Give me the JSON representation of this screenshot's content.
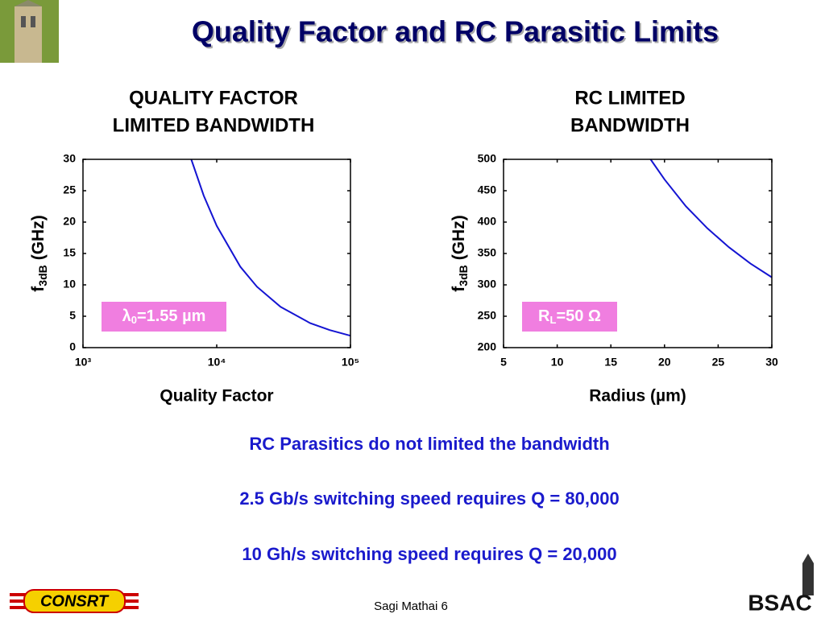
{
  "slide_title": "Quality Factor and RC Parasitic Limits",
  "chart_data": [
    {
      "type": "line",
      "title": [
        "QUALITY FACTOR",
        "LIMITED BANDWIDTH"
      ],
      "xlabel": "Quality Factor",
      "ylabel": {
        "symbol": "f",
        "subscript": "3dB",
        "unit": "(GHz)"
      },
      "annotation": {
        "symbol": "λ",
        "subscript": "0",
        "text": "=1.55 µm"
      },
      "xscale": "log",
      "x": [
        6450,
        8000,
        10000,
        15000,
        20000,
        30000,
        50000,
        70000,
        100000
      ],
      "series": [
        {
          "color": "#1414d2",
          "values": [
            30,
            24.2,
            19.4,
            12.9,
            9.7,
            6.5,
            3.9,
            2.8,
            1.9
          ]
        }
      ],
      "xlim": [
        1000,
        100000
      ],
      "xticks": [
        {
          "value": 1000,
          "label": "10³"
        },
        {
          "value": 10000,
          "label": "10⁴"
        },
        {
          "value": 100000,
          "label": "10⁵"
        }
      ],
      "ylim": [
        0,
        30
      ],
      "yticks": [
        0,
        5,
        10,
        15,
        20,
        25,
        30
      ]
    },
    {
      "type": "line",
      "title": [
        "RC LIMITED",
        "BANDWIDTH"
      ],
      "xlabel": "Radius (µm)",
      "ylabel": {
        "symbol": "f",
        "subscript": "3dB",
        "unit": "(GHz)"
      },
      "annotation": {
        "symbol": "R",
        "subscript": "L",
        "text": "=50 Ω"
      },
      "xscale": "linear",
      "x": [
        18.7,
        20,
        22,
        24,
        26,
        28,
        30
      ],
      "series": [
        {
          "color": "#1414d2",
          "values": [
            500,
            468,
            425,
            390,
            360,
            334,
            312
          ]
        }
      ],
      "xlim": [
        5,
        30
      ],
      "xticks": [
        5,
        10,
        15,
        20,
        25,
        30
      ],
      "ylim": [
        200,
        500
      ],
      "yticks": [
        200,
        250,
        300,
        350,
        400,
        450,
        500
      ]
    }
  ],
  "notes": [
    "RC Parasitics do not limited the bandwidth",
    "2.5 Gb/s switching speed requires Q = 80,000",
    "10 Gh/s switching speed requires Q = 20,000"
  ],
  "footer": "Sagi Mathai 6",
  "logos": [
    "CONSRT",
    "BSAC"
  ]
}
